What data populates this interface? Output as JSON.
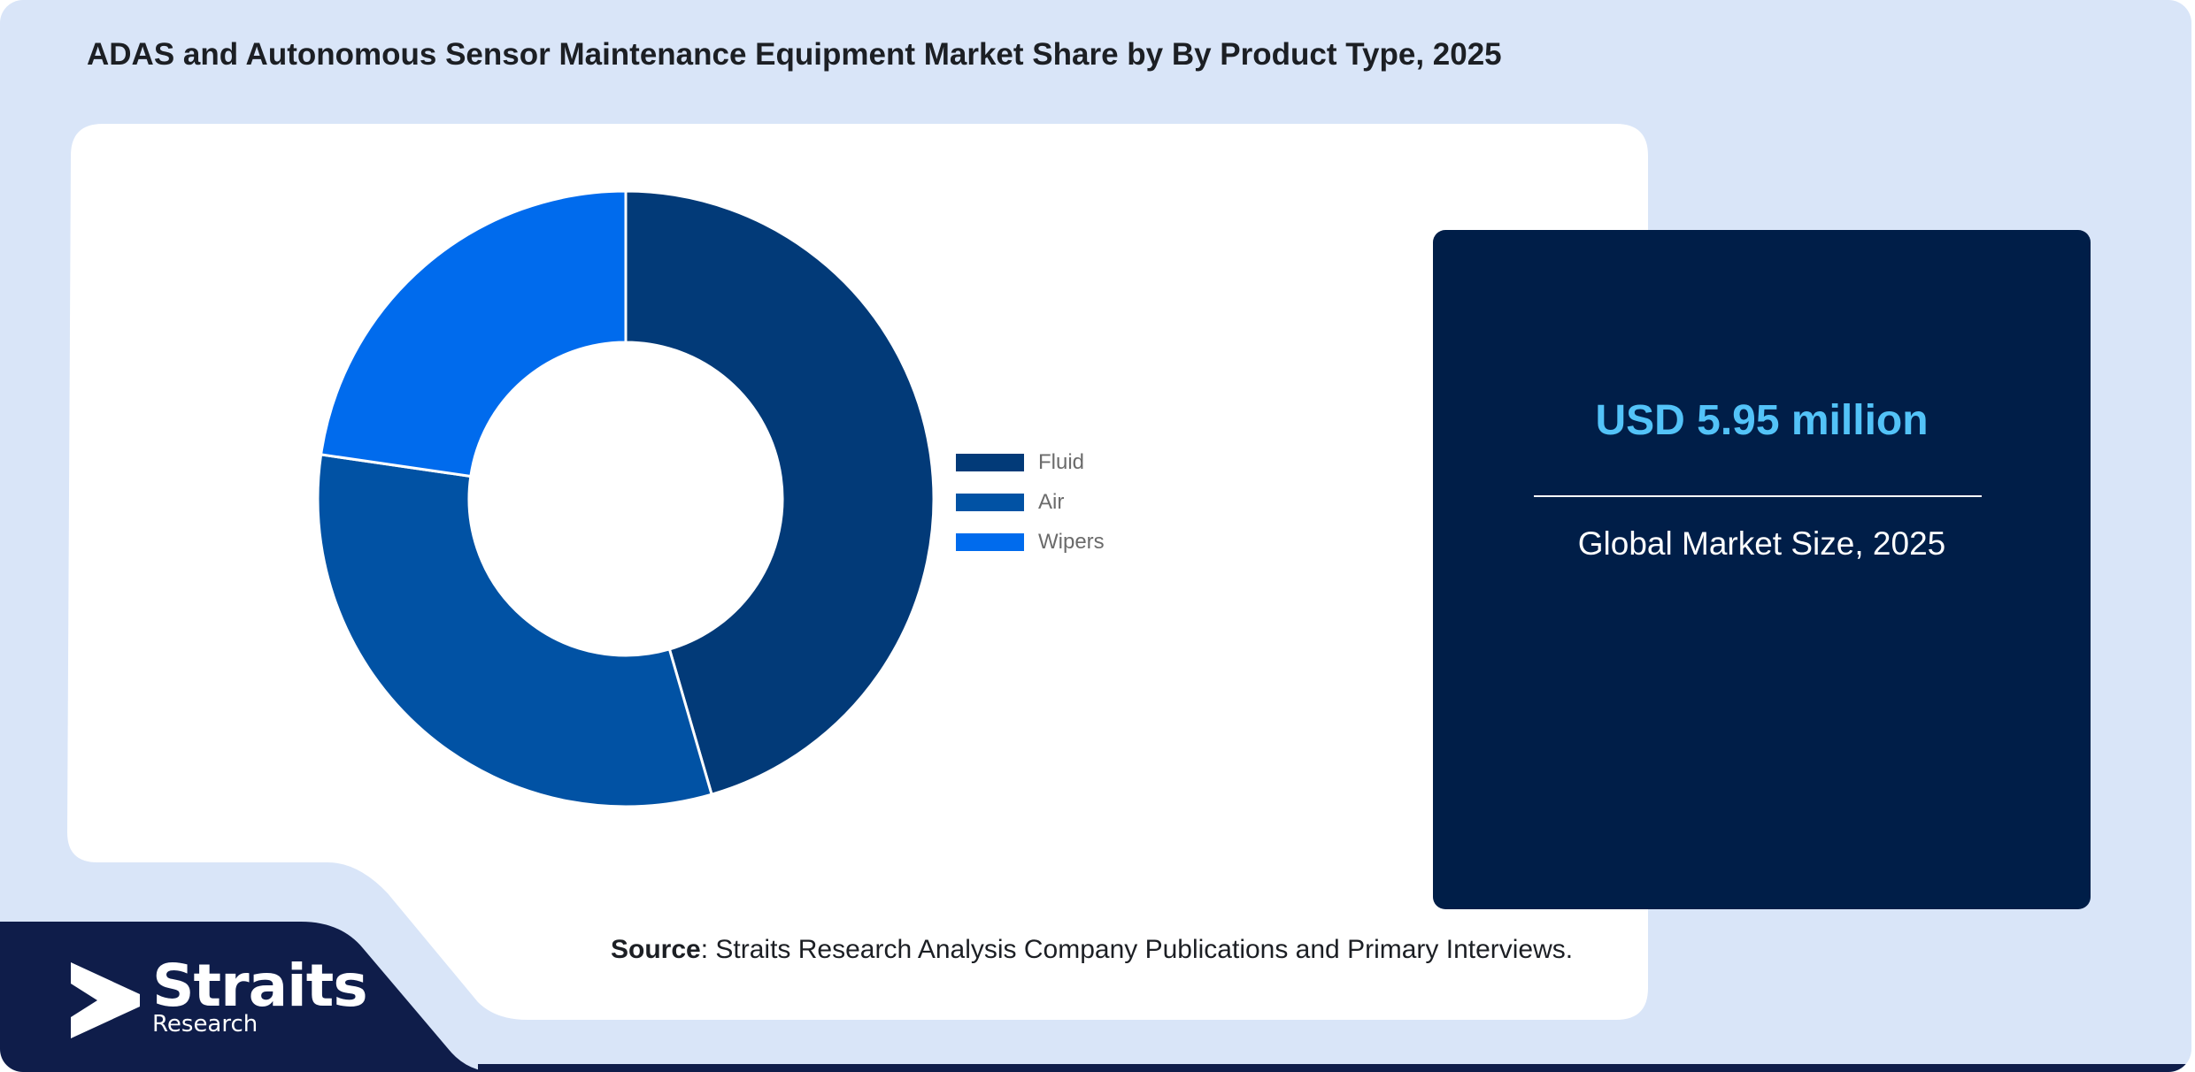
{
  "title": "ADAS and Autonomous Sensor Maintenance Equipment Market Share by By Product Type, 2025",
  "chart_data": {
    "type": "pie",
    "donut": true,
    "title": "ADAS and Autonomous Sensor Maintenance Equipment Market Share by By Product Type, 2025",
    "categories": [
      "Fluid",
      "Air",
      "Wipers"
    ],
    "values": [
      45.5,
      31.8,
      22.7
    ],
    "colors": [
      "#023a78",
      "#0152a4",
      "#006bed"
    ],
    "legend_position": "right"
  },
  "info_box": {
    "value": "USD 5.95 million",
    "label": "Global Market Size, 2025"
  },
  "source": {
    "label": "Source",
    "text": ": Straits Research Analysis Company Publications and Primary Interviews."
  },
  "logo": {
    "name": "Straits",
    "sub": "Research",
    "icon": "straits-arrow-icon"
  },
  "colors": {
    "background": "#d9e5f8",
    "card": "#ffffff",
    "info_box": "#001e48",
    "highlight": "#53c3f8",
    "footer_band": "#0f1d4a"
  }
}
